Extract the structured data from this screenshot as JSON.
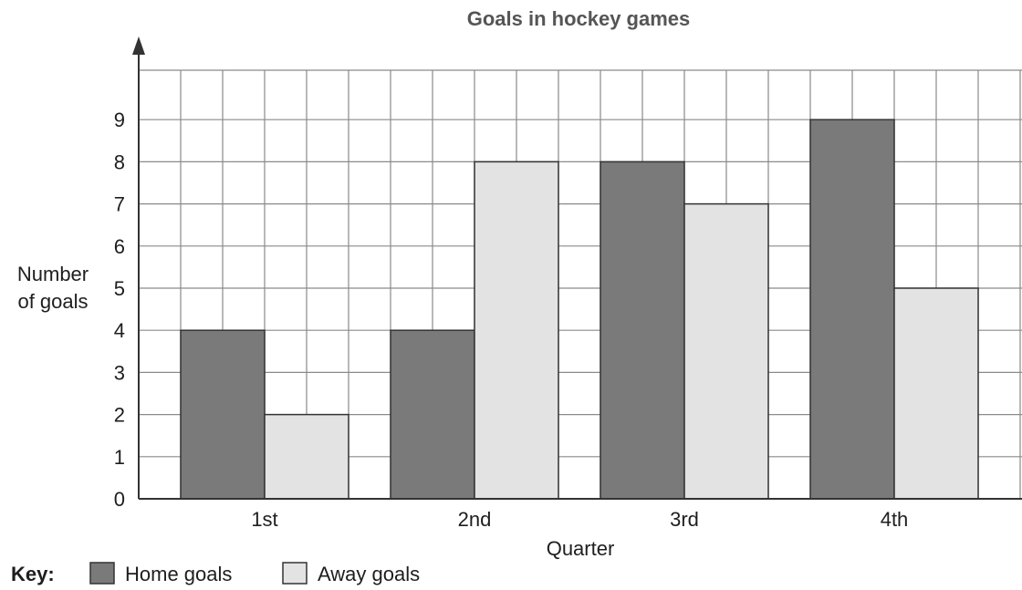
{
  "chart_data": {
    "type": "bar",
    "title": "Goals in hockey games",
    "xlabel": "Quarter",
    "ylabel": [
      "Number",
      "of goals"
    ],
    "categories": [
      "1st",
      "2nd",
      "3rd",
      "4th"
    ],
    "series": [
      {
        "name": "Home goals",
        "values": [
          4,
          4,
          8,
          9
        ],
        "color": "#7a7a7a"
      },
      {
        "name": "Away goals",
        "values": [
          2,
          8,
          7,
          5
        ],
        "color": "#e3e3e3"
      }
    ],
    "ylim": [
      0,
      10
    ],
    "yticks": [
      0,
      1,
      2,
      3,
      4,
      5,
      6,
      7,
      8,
      9
    ],
    "grid": true,
    "legend": {
      "title": "Key:",
      "placement": "bottom-left"
    }
  }
}
